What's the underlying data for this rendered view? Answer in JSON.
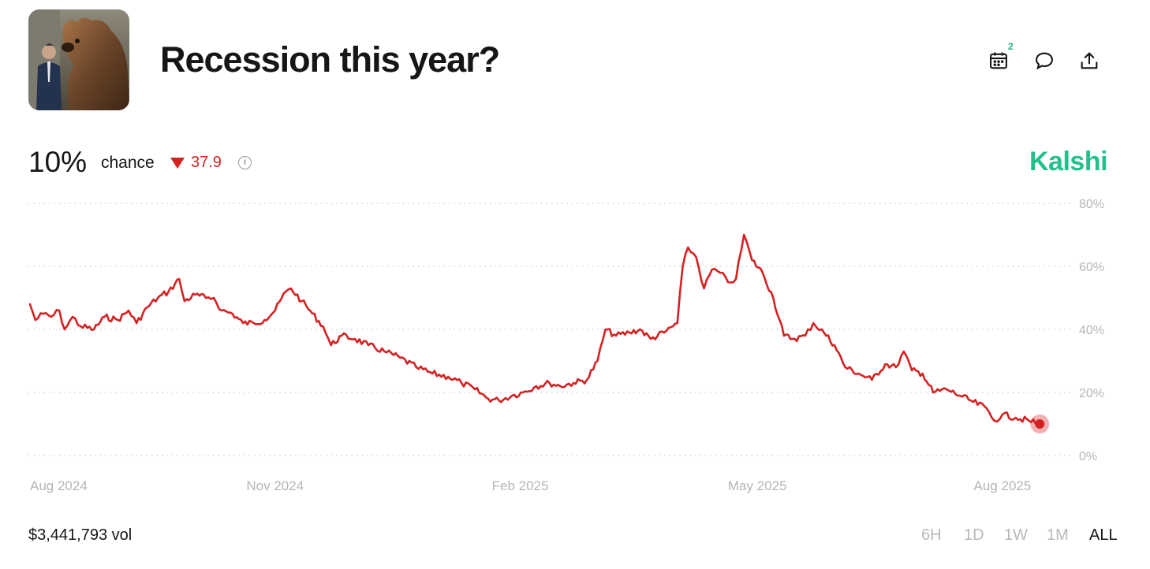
{
  "header": {
    "title": "Recession this year?",
    "thumbnail_alt": "bear-statue-photo",
    "notification_count": "2",
    "icons": [
      "calendar-icon",
      "comment-icon",
      "share-icon"
    ]
  },
  "summary": {
    "percent": "10%",
    "chance_label": "chance",
    "change": "37.9",
    "change_direction": "down",
    "change_color": "#d42222",
    "brand": "Kalshi",
    "brand_color": "#22c08a"
  },
  "footer": {
    "volume": "$3,441,793 vol",
    "ranges": [
      "6H",
      "1D",
      "1W",
      "1M",
      "ALL"
    ],
    "active_range": "ALL"
  },
  "chart_data": {
    "type": "line",
    "series": [
      {
        "color": "#d42222",
        "points": [
          [
            "2024-08-01",
            48
          ],
          [
            "2024-08-03",
            43
          ],
          [
            "2024-08-06",
            45
          ],
          [
            "2024-08-09",
            44
          ],
          [
            "2024-08-12",
            46
          ],
          [
            "2024-08-14",
            40
          ],
          [
            "2024-08-17",
            44
          ],
          [
            "2024-08-20",
            41
          ],
          [
            "2024-08-25",
            40
          ],
          [
            "2024-08-29",
            44
          ],
          [
            "2024-09-03",
            43
          ],
          [
            "2024-09-07",
            46
          ],
          [
            "2024-09-10",
            42
          ],
          [
            "2024-09-14",
            47
          ],
          [
            "2024-09-18",
            50
          ],
          [
            "2024-09-22",
            52
          ],
          [
            "2024-09-26",
            56
          ],
          [
            "2024-09-28",
            49
          ],
          [
            "2024-10-02",
            51
          ],
          [
            "2024-10-06",
            50
          ],
          [
            "2024-10-09",
            50
          ],
          [
            "2024-10-12",
            46
          ],
          [
            "2024-10-16",
            45
          ],
          [
            "2024-10-20",
            42
          ],
          [
            "2024-10-24",
            42
          ],
          [
            "2024-10-28",
            43
          ],
          [
            "2024-11-01",
            46
          ],
          [
            "2024-11-05",
            52
          ],
          [
            "2024-11-07",
            53
          ],
          [
            "2024-11-11",
            49
          ],
          [
            "2024-11-15",
            45
          ],
          [
            "2024-11-19",
            41
          ],
          [
            "2024-11-22",
            35
          ],
          [
            "2024-11-26",
            38
          ],
          [
            "2024-12-01",
            37
          ],
          [
            "2024-12-06",
            35
          ],
          [
            "2024-12-12",
            33
          ],
          [
            "2024-12-18",
            31
          ],
          [
            "2024-12-24",
            28
          ],
          [
            "2024-12-30",
            26
          ],
          [
            "2025-01-05",
            25
          ],
          [
            "2025-01-10",
            23
          ],
          [
            "2025-01-15",
            21
          ],
          [
            "2025-01-20",
            18
          ],
          [
            "2025-01-24",
            17.5
          ],
          [
            "2025-01-29",
            19
          ],
          [
            "2025-02-02",
            20
          ],
          [
            "2025-02-07",
            22
          ],
          [
            "2025-02-12",
            23
          ],
          [
            "2025-02-16",
            22
          ],
          [
            "2025-02-21",
            23
          ],
          [
            "2025-02-26",
            24
          ],
          [
            "2025-03-02",
            30
          ],
          [
            "2025-03-05",
            40
          ],
          [
            "2025-03-09",
            38
          ],
          [
            "2025-03-14",
            39
          ],
          [
            "2025-03-18",
            40
          ],
          [
            "2025-03-22",
            37
          ],
          [
            "2025-03-27",
            39
          ],
          [
            "2025-04-01",
            42
          ],
          [
            "2025-04-03",
            60
          ],
          [
            "2025-04-05",
            66
          ],
          [
            "2025-04-08",
            63
          ],
          [
            "2025-04-11",
            53
          ],
          [
            "2025-04-14",
            59
          ],
          [
            "2025-04-17",
            58
          ],
          [
            "2025-04-20",
            55
          ],
          [
            "2025-04-23",
            56
          ],
          [
            "2025-04-26",
            70
          ],
          [
            "2025-04-29",
            62
          ],
          [
            "2025-05-03",
            58
          ],
          [
            "2025-05-07",
            50
          ],
          [
            "2025-05-11",
            38
          ],
          [
            "2025-05-15",
            37
          ],
          [
            "2025-05-19",
            38
          ],
          [
            "2025-05-22",
            42
          ],
          [
            "2025-05-26",
            39
          ],
          [
            "2025-05-30",
            35
          ],
          [
            "2025-06-03",
            28
          ],
          [
            "2025-06-08",
            26
          ],
          [
            "2025-06-13",
            24
          ],
          [
            "2025-06-18",
            29
          ],
          [
            "2025-06-22",
            28
          ],
          [
            "2025-06-25",
            33
          ],
          [
            "2025-06-28",
            27
          ],
          [
            "2025-07-02",
            26
          ],
          [
            "2025-07-06",
            20
          ],
          [
            "2025-07-11",
            21
          ],
          [
            "2025-07-16",
            19
          ],
          [
            "2025-07-21",
            17
          ],
          [
            "2025-07-26",
            15
          ],
          [
            "2025-07-29",
            11
          ],
          [
            "2025-08-01",
            13
          ],
          [
            "2025-08-06",
            12
          ],
          [
            "2025-08-11",
            11
          ],
          [
            "2025-08-15",
            10
          ]
        ]
      }
    ],
    "x_ticks": [
      "Aug 2024",
      "Nov 2024",
      "Feb 2025",
      "May 2025",
      "Aug 2025"
    ],
    "x_tick_dates": [
      "2024-08-01",
      "2024-11-01",
      "2025-02-01",
      "2025-05-01",
      "2025-08-01"
    ],
    "y_ticks": [
      "80%",
      "60%",
      "40%",
      "20%",
      "0%"
    ],
    "y_tick_values": [
      80,
      60,
      40,
      20,
      0
    ],
    "ylim": [
      0,
      80
    ],
    "xlim": [
      "2024-08-01",
      "2025-08-25"
    ],
    "grid": true
  }
}
